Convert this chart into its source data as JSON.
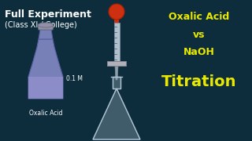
{
  "background_color": "#0d2d3d",
  "title_line1": "Full Experiment",
  "title_line2": "(Class XI / College)",
  "right_line1": "Oxalic Acid",
  "right_line2": "vs",
  "right_line3": "NaOH",
  "right_line4": "Titration",
  "label_conc": "0.1 M",
  "label_acid": "Oxalic Acid",
  "title_color": "#ffffff",
  "right_color": "#e8e800",
  "bottle_body_color": "#7880b8",
  "bottle_liquid_color": "#9090cc",
  "bottle_edge_color": "#5860a0",
  "stopper_color": "#9090a8",
  "flask_color": "#d8e4ee",
  "flask_edge_color": "#b0c4d4",
  "burette_color": "#b0c0cc",
  "bulb_color": "#cc3010",
  "tap_color": "#b0b0b8",
  "tip_color": "#90a0a8"
}
